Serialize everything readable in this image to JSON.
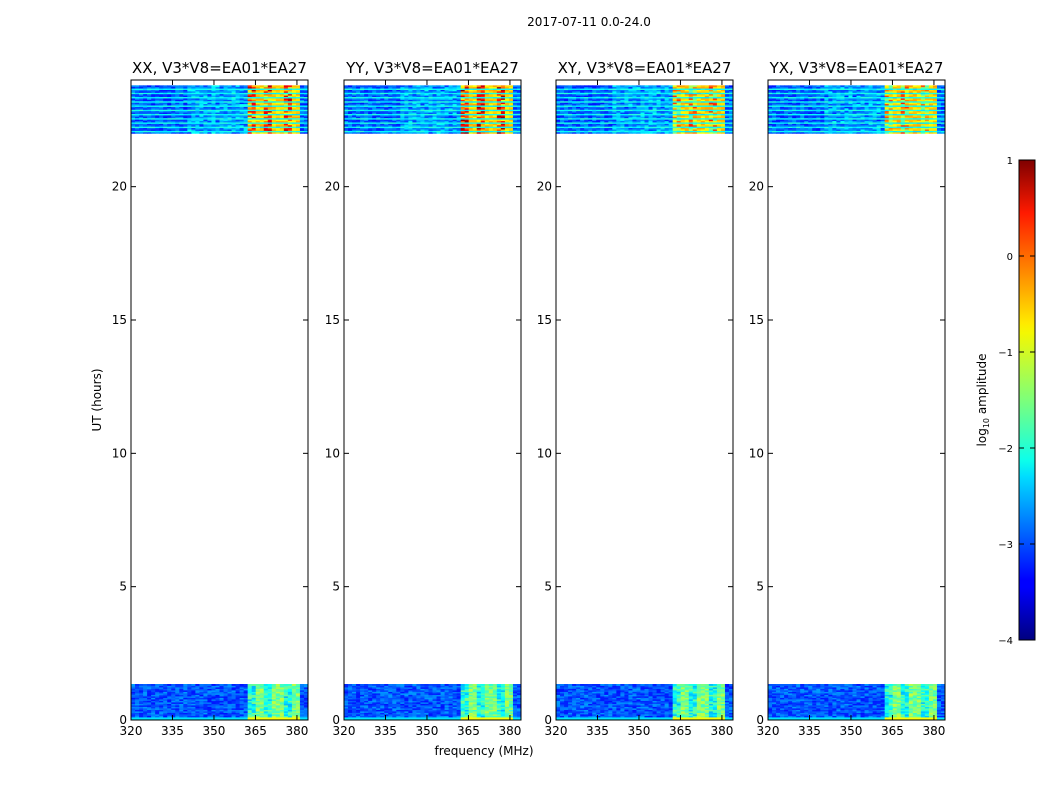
{
  "figure": {
    "suptitle": "2017-07-11 0.0-24.0",
    "xlabel": "frequency (MHz)",
    "ylabel": "UT (hours)"
  },
  "colorbar": {
    "label": "log10 amplitude",
    "label_base": "log",
    "label_sub": "10",
    "label_rest": " amplitude",
    "ticks": [
      "1",
      "0",
      "−1",
      "−2",
      "−3",
      "−4"
    ],
    "tick_values": [
      1,
      0,
      -1,
      -2,
      -3,
      -4
    ],
    "range": [
      -4,
      1
    ],
    "colormap": "jet"
  },
  "chart_data": [
    {
      "type": "heatmap",
      "title": "XX, V3*V8=EA01*EA27",
      "xlabel": "",
      "ylabel": "UT (hours)",
      "xlim": [
        320,
        384
      ],
      "ylim": [
        0,
        24
      ],
      "x_ticks": [
        320,
        335,
        350,
        365,
        380
      ],
      "y_ticks": [
        0,
        5,
        10,
        15,
        20
      ],
      "data_windows_hours": [
        [
          0.0,
          1.35
        ],
        [
          22.0,
          23.8
        ]
      ],
      "rfi_band_mhz": [
        361,
        381
      ],
      "late_window_rfi_level": 0.55
    },
    {
      "type": "heatmap",
      "title": "YY, V3*V8=EA01*EA27",
      "xlabel": "frequency (MHz)",
      "ylabel": "",
      "xlim": [
        320,
        384
      ],
      "ylim": [
        0,
        24
      ],
      "x_ticks": [
        320,
        335,
        350,
        365,
        380
      ],
      "y_ticks": [
        0,
        5,
        10,
        15,
        20
      ],
      "data_windows_hours": [
        [
          0.0,
          1.35
        ],
        [
          22.0,
          23.8
        ]
      ],
      "rfi_band_mhz": [
        361,
        381
      ],
      "late_window_rfi_level": 0.6
    },
    {
      "type": "heatmap",
      "title": "XY, V3*V8=EA01*EA27",
      "xlabel": "",
      "ylabel": "",
      "xlim": [
        320,
        384
      ],
      "ylim": [
        0,
        24
      ],
      "x_ticks": [
        320,
        335,
        350,
        365,
        380
      ],
      "y_ticks": [
        0,
        5,
        10,
        15,
        20
      ],
      "data_windows_hours": [
        [
          0.0,
          1.35
        ],
        [
          22.0,
          23.8
        ]
      ],
      "rfi_band_mhz": [
        361,
        381
      ],
      "late_window_rfi_level": 0.45
    },
    {
      "type": "heatmap",
      "title": "YX, V3*V8=EA01*EA27",
      "xlabel": "",
      "ylabel": "",
      "xlim": [
        320,
        384
      ],
      "ylim": [
        0,
        24
      ],
      "x_ticks": [
        320,
        335,
        350,
        365,
        380
      ],
      "y_ticks": [
        0,
        5,
        10,
        15,
        20
      ],
      "data_windows_hours": [
        [
          0.0,
          1.35
        ],
        [
          22.0,
          23.8
        ]
      ],
      "rfi_band_mhz": [
        361,
        381
      ],
      "late_window_rfi_level": 0.45
    }
  ]
}
